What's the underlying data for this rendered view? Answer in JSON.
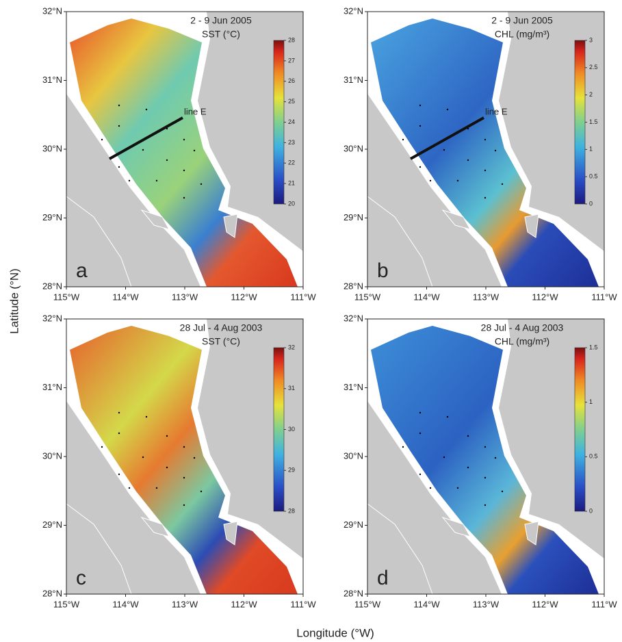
{
  "axis_labels": {
    "y": "Latitude (°N)",
    "x": "Longitude (°W)"
  },
  "panels": [
    {
      "letter": "a",
      "date": "2 - 9 Jun 2005",
      "variable": "SST (°C)",
      "line_label": "line E",
      "colorbar_ticks": [
        20,
        21,
        22,
        23,
        24,
        25,
        26,
        27,
        28
      ],
      "lat_ticks": [
        "32°N",
        "31°N",
        "30°N",
        "29°N",
        "28°N"
      ],
      "lon_ticks": [
        "115°W",
        "114°W",
        "113°W",
        "112°W",
        "111°W"
      ]
    },
    {
      "letter": "b",
      "date": "2 - 9 Jun 2005",
      "variable": "CHL (mg/m³)",
      "line_label": "line E",
      "colorbar_ticks": [
        0,
        0.5,
        1,
        1.5,
        2,
        2.5,
        3
      ],
      "lat_ticks": [
        "32°N",
        "31°N",
        "30°N",
        "29°N",
        "28°N"
      ],
      "lon_ticks": [
        "115°W",
        "114°W",
        "113°W",
        "112°W",
        "111°W"
      ]
    },
    {
      "letter": "c",
      "date": "28 Jul - 4 Aug 2003",
      "variable": "SST (°C)",
      "colorbar_ticks": [
        28,
        29,
        30,
        31,
        32
      ],
      "lat_ticks": [
        "32°N",
        "31°N",
        "30°N",
        "29°N",
        "28°N"
      ],
      "lon_ticks": [
        "115°W",
        "114°W",
        "113°W",
        "112°W",
        "111°W"
      ]
    },
    {
      "letter": "d",
      "date": "28 Jul - 4 Aug 2003",
      "variable": "CHL (mg/m³)",
      "colorbar_ticks": [
        0,
        0.5,
        1,
        1.5
      ],
      "lat_ticks": [
        "32°N",
        "31°N",
        "30°N",
        "29°N",
        "28°N"
      ],
      "lon_ticks": [
        "115°W",
        "114°W",
        "113°W",
        "112°W",
        "111°W"
      ]
    }
  ]
}
